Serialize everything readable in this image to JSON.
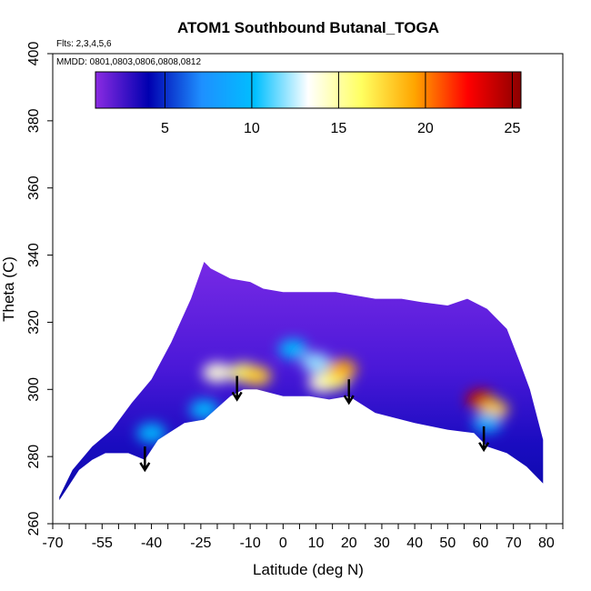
{
  "chart_data": {
    "type": "heatmap",
    "title": "ATOM1 Southbound Butanal_TOGA",
    "annotations": [
      "Flts: 2,3,4,5,6",
      "MMDD: 0801,0803,0806,0808,0812"
    ],
    "xlabel": "Latitude (deg N)",
    "ylabel": "Theta (C)",
    "xlim": [
      -70,
      85
    ],
    "ylim": [
      260,
      400
    ],
    "x_ticks_minor": [
      -70,
      -65,
      -60,
      -55,
      -50,
      -45,
      -40,
      -35,
      -30,
      -25,
      -20,
      -15,
      -10,
      -5,
      0,
      5,
      10,
      15,
      20,
      25,
      30,
      35,
      40,
      45,
      50,
      55,
      60,
      65,
      70,
      75,
      80,
      85
    ],
    "x_tick_labels": [
      "-70",
      "-55",
      "-40",
      "-25",
      "-10",
      "0",
      "10",
      "20",
      "30",
      "40",
      "50",
      "60",
      "70",
      "80"
    ],
    "x_tick_values": [
      -70,
      -55,
      -40,
      -25,
      -10,
      0,
      10,
      20,
      30,
      40,
      50,
      60,
      70,
      80
    ],
    "y_ticks": [
      260,
      280,
      300,
      320,
      340,
      360,
      380,
      400
    ],
    "y_tick_labels": [
      "260",
      "280",
      "300",
      "320",
      "340",
      "360",
      "380",
      "400"
    ],
    "colorbar": {
      "range": [
        1,
        25.5
      ],
      "ticks": [
        5,
        10,
        15,
        20,
        25
      ],
      "tick_labels": [
        "5",
        "10",
        "15",
        "20",
        "25"
      ],
      "colors": [
        "#8b2be2",
        "#0000b0",
        "#1e90ff",
        "#00bfff",
        "#ffffff",
        "#ffff60",
        "#ffa500",
        "#ff0000",
        "#8b0000"
      ]
    },
    "envelope": {
      "bottom": [
        [
          -68,
          267
        ],
        [
          -66,
          270
        ],
        [
          -62,
          276
        ],
        [
          -58,
          279
        ],
        [
          -54,
          281
        ],
        [
          -47,
          281
        ],
        [
          -42,
          279
        ],
        [
          -38,
          285
        ],
        [
          -30,
          290
        ],
        [
          -24,
          291
        ],
        [
          -16,
          298
        ],
        [
          -12,
          300
        ],
        [
          -8,
          300
        ],
        [
          0,
          298
        ],
        [
          8,
          298
        ],
        [
          14,
          297
        ],
        [
          20,
          298
        ],
        [
          28,
          293
        ],
        [
          40,
          290
        ],
        [
          50,
          288
        ],
        [
          58,
          287
        ],
        [
          62,
          283
        ],
        [
          68,
          281
        ],
        [
          74,
          277
        ],
        [
          79,
          272
        ]
      ],
      "top": [
        [
          79,
          273
        ],
        [
          79,
          285
        ],
        [
          75,
          300
        ],
        [
          72,
          308
        ],
        [
          68,
          318
        ],
        [
          62,
          324
        ],
        [
          56,
          327
        ],
        [
          50,
          325
        ],
        [
          42,
          326
        ],
        [
          36,
          327
        ],
        [
          28,
          327
        ],
        [
          16,
          329
        ],
        [
          8,
          329
        ],
        [
          0,
          329
        ],
        [
          -6,
          330
        ],
        [
          -10,
          332
        ],
        [
          -16,
          333
        ],
        [
          -22,
          336
        ],
        [
          -24,
          338
        ],
        [
          -28,
          327
        ],
        [
          -34,
          314
        ],
        [
          -40,
          303
        ],
        [
          -46,
          296
        ],
        [
          -52,
          288
        ],
        [
          -58,
          283
        ],
        [
          -64,
          276
        ],
        [
          -68,
          268
        ]
      ]
    },
    "hotspots": [
      {
        "lat": -20,
        "theta": 305,
        "value": 14
      },
      {
        "lat": -12,
        "theta": 305,
        "value": 16
      },
      {
        "lat": -8,
        "theta": 304,
        "value": 18
      },
      {
        "lat": 3,
        "theta": 312,
        "value": 10
      },
      {
        "lat": 10,
        "theta": 308,
        "value": 12
      },
      {
        "lat": 12,
        "theta": 302,
        "value": 14
      },
      {
        "lat": 16,
        "theta": 303,
        "value": 16
      },
      {
        "lat": 18,
        "theta": 306,
        "value": 19
      },
      {
        "lat": 60,
        "theta": 297,
        "value": 24
      },
      {
        "lat": 64,
        "theta": 294,
        "value": 18
      },
      {
        "lat": 62,
        "theta": 290,
        "value": 9
      },
      {
        "lat": -40,
        "theta": 287,
        "value": 10
      },
      {
        "lat": -24,
        "theta": 294,
        "value": 10
      }
    ],
    "arrows": [
      {
        "lat": -42,
        "theta_from": 283,
        "theta_to": 276
      },
      {
        "lat": -14,
        "theta_from": 304,
        "theta_to": 297
      },
      {
        "lat": 20,
        "theta_from": 303,
        "theta_to": 296
      },
      {
        "lat": 61,
        "theta_from": 289,
        "theta_to": 282
      }
    ]
  }
}
